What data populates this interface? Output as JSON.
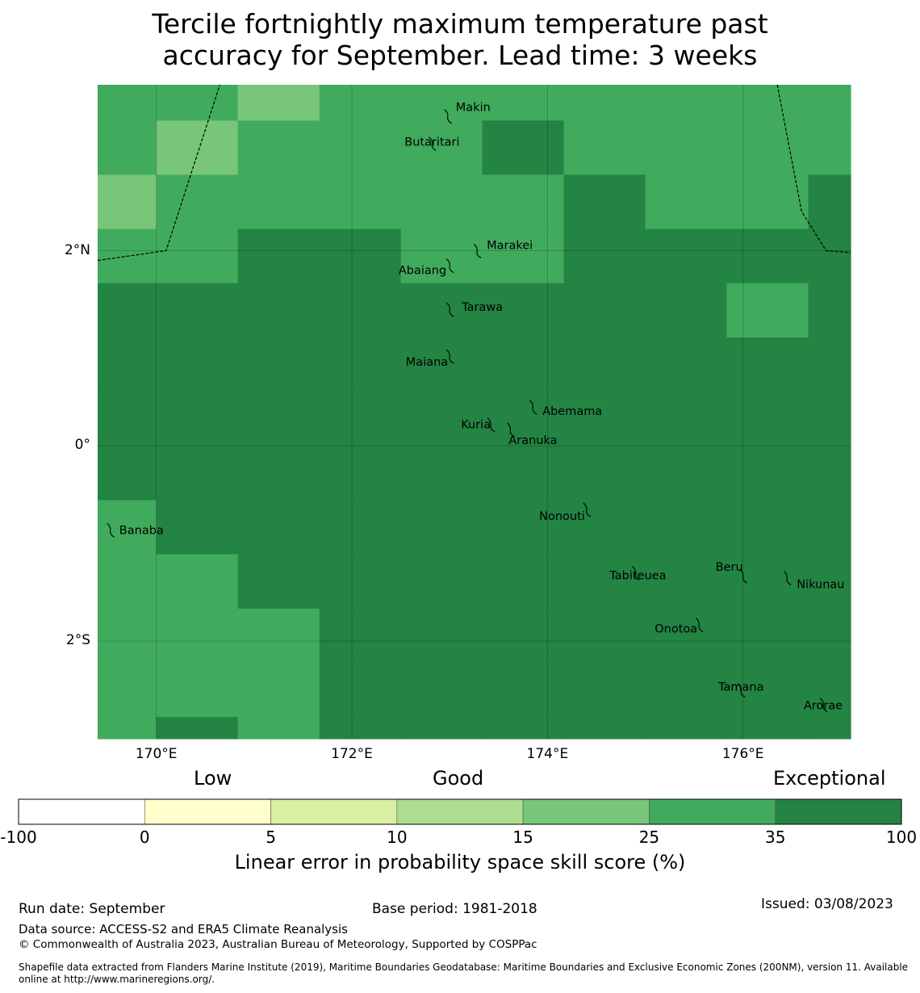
{
  "title": {
    "line1": "Tercile fortnightly maximum temperature past",
    "line2": "accuracy for September. Lead time: 3 weeks"
  },
  "map": {
    "lon_range": [
      169.4,
      177.1
    ],
    "lat_range": [
      -3.0,
      3.7
    ],
    "x_ticks": [
      "170°E",
      "172°E",
      "174°E",
      "176°E"
    ],
    "x_tick_values": [
      170,
      172,
      174,
      176
    ],
    "y_ticks": [
      "2°N",
      "0°",
      "2°S"
    ],
    "y_tick_values": [
      2,
      0,
      -2
    ],
    "grid_lon_edges": [
      169.4,
      170.0,
      170.833,
      171.667,
      172.5,
      173.333,
      174.167,
      175.0,
      175.833,
      176.667,
      177.1
    ],
    "grid_lat_edges": [
      3.7,
      3.333,
      2.778,
      2.222,
      1.667,
      1.111,
      0.556,
      0.0,
      -0.556,
      -1.111,
      -1.667,
      -2.222,
      -2.778,
      -3.0
    ],
    "grid_levels": [
      [
        6,
        6,
        5,
        6,
        6,
        6,
        6,
        6,
        6,
        6
      ],
      [
        6,
        5,
        6,
        6,
        6,
        7,
        6,
        6,
        6,
        6
      ],
      [
        5,
        6,
        6,
        6,
        6,
        6,
        7,
        6,
        6,
        7
      ],
      [
        6,
        6,
        7,
        7,
        6,
        6,
        7,
        7,
        7,
        7
      ],
      [
        7,
        7,
        7,
        7,
        7,
        7,
        7,
        7,
        6,
        7
      ],
      [
        7,
        7,
        7,
        7,
        7,
        7,
        7,
        7,
        7,
        7
      ],
      [
        7,
        7,
        7,
        7,
        7,
        7,
        7,
        7,
        7,
        7
      ],
      [
        7,
        7,
        7,
        7,
        7,
        7,
        7,
        7,
        7,
        7
      ],
      [
        6,
        7,
        7,
        7,
        7,
        7,
        7,
        7,
        7,
        7
      ],
      [
        6,
        6,
        7,
        7,
        7,
        7,
        7,
        7,
        7,
        7
      ],
      [
        6,
        6,
        6,
        7,
        7,
        7,
        7,
        7,
        7,
        7
      ],
      [
        6,
        6,
        6,
        7,
        7,
        7,
        7,
        7,
        7,
        7
      ],
      [
        6,
        7,
        6,
        7,
        7,
        7,
        7,
        7,
        7,
        7
      ]
    ],
    "eez_boundary_west": [
      [
        169.4,
        1.9
      ],
      [
        170.1,
        2.0
      ],
      [
        170.65,
        3.7
      ]
    ],
    "eez_boundary_east": [
      [
        176.35,
        3.7
      ],
      [
        176.6,
        2.4
      ],
      [
        176.85,
        2.0
      ],
      [
        177.1,
        1.98
      ]
    ],
    "islands": [
      {
        "name": "Makin",
        "lon": 172.98,
        "lat": 3.38
      },
      {
        "name": "Butaritari",
        "lon": 172.82,
        "lat": 3.1
      },
      {
        "name": "Marakei",
        "lon": 173.28,
        "lat": 2.0
      },
      {
        "name": "Abaiang",
        "lon": 173.0,
        "lat": 1.85
      },
      {
        "name": "Tarawa",
        "lon": 173.0,
        "lat": 1.4
      },
      {
        "name": "Maiana",
        "lon": 173.0,
        "lat": 0.92
      },
      {
        "name": "Abemama",
        "lon": 173.85,
        "lat": 0.4
      },
      {
        "name": "Kuria",
        "lon": 173.42,
        "lat": 0.22
      },
      {
        "name": "Aranuka",
        "lon": 173.62,
        "lat": 0.17
      },
      {
        "name": "Banaba",
        "lon": 169.53,
        "lat": -0.86
      },
      {
        "name": "Nonouti",
        "lon": 174.4,
        "lat": -0.65
      },
      {
        "name": "Tabiteuea",
        "lon": 174.9,
        "lat": -1.3
      },
      {
        "name": "Beru",
        "lon": 176.0,
        "lat": -1.33
      },
      {
        "name": "Nikunau",
        "lon": 176.45,
        "lat": -1.35
      },
      {
        "name": "Onotoa",
        "lon": 175.55,
        "lat": -1.83
      },
      {
        "name": "Tamana",
        "lon": 175.98,
        "lat": -2.5
      },
      {
        "name": "Arorae",
        "lon": 176.82,
        "lat": -2.65
      }
    ]
  },
  "categories": {
    "low": "Low",
    "good": "Good",
    "exceptional": "Exceptional"
  },
  "colorbar": {
    "colors": [
      "#ffffff",
      "#ffffcc",
      "#d9f0a3",
      "#addd8e",
      "#78c679",
      "#41ab5d",
      "#238443"
    ],
    "ticks": [
      "-100",
      "0",
      "5",
      "10",
      "15",
      "25",
      "35",
      "100"
    ],
    "label": "Linear error in probability space skill score (%)"
  },
  "footer": {
    "run_date": "Run date: September",
    "base_period": "Base period: 1981-2018",
    "issued": "Issued: 03/08/2023",
    "data_source": "Data source: ACCESS-S2 and ERA5 Climate Reanalysis",
    "copyright": "© Commonwealth of Australia 2023, Australian Bureau of Meteorology, Supported by COSPPac",
    "shapefile": "Shapefile data extracted from Flanders Marine Institute (2019), Maritime Boundaries Geodatabase: Maritime Boundaries and Exclusive Economic Zones (200NM), version 11. Available online at http://www.marineregions.org/."
  }
}
